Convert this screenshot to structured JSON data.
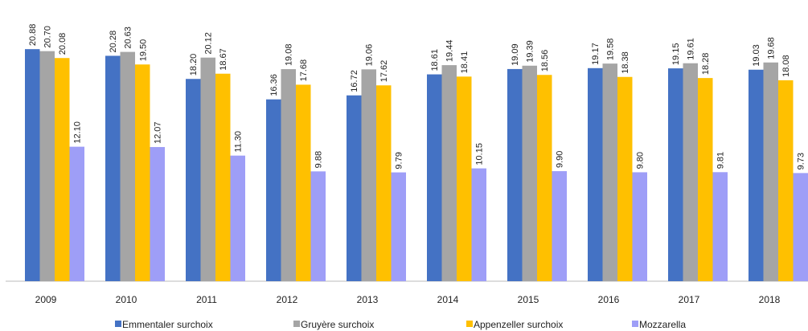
{
  "chart_data": {
    "type": "bar",
    "categories": [
      "2009",
      "2010",
      "2011",
      "2012",
      "2013",
      "2014",
      "2015",
      "2016",
      "2017",
      "2018"
    ],
    "series": [
      {
        "name": "Emmentaler surchoix",
        "color": "#4472c4",
        "values": [
          20.88,
          20.28,
          18.2,
          16.36,
          16.72,
          18.61,
          19.09,
          19.17,
          19.15,
          19.03
        ],
        "value_labels": [
          "20.88",
          "20.28",
          "18.20",
          "16.36",
          "16.72",
          "18.61",
          "19.09",
          "19.17",
          "19.15",
          "19.03"
        ]
      },
      {
        "name": "Gruyère surchoix",
        "color": "#a5a5a5",
        "values": [
          20.7,
          20.63,
          20.12,
          19.08,
          19.06,
          19.44,
          19.39,
          19.58,
          19.61,
          19.68
        ],
        "value_labels": [
          "20.70",
          "20.63",
          "20.12",
          "19.08",
          "19.06",
          "19.44",
          "19.39",
          "19.58",
          "19.61",
          "19.68"
        ]
      },
      {
        "name": "Appenzeller surchoix",
        "color": "#ffc000",
        "values": [
          20.08,
          19.5,
          18.67,
          17.68,
          17.62,
          18.41,
          18.56,
          18.38,
          18.28,
          18.08
        ],
        "value_labels": [
          "20.08",
          "19.50",
          "18.67",
          "17.68",
          "17.62",
          "18.41",
          "18.56",
          "18.38",
          "18.28",
          "18.08"
        ]
      },
      {
        "name": "Mozzarella",
        "color": "#9e9ef7",
        "values": [
          12.1,
          12.07,
          11.3,
          9.88,
          9.79,
          10.15,
          9.9,
          9.8,
          9.81,
          9.73
        ],
        "value_labels": [
          "12.10",
          "12.07",
          "11.30",
          "9.88",
          "9.79",
          "10.15",
          "9.90",
          "9.80",
          "9.81",
          "9.73"
        ]
      }
    ],
    "ylim": [
      0,
      24
    ],
    "legend": "bottom"
  }
}
